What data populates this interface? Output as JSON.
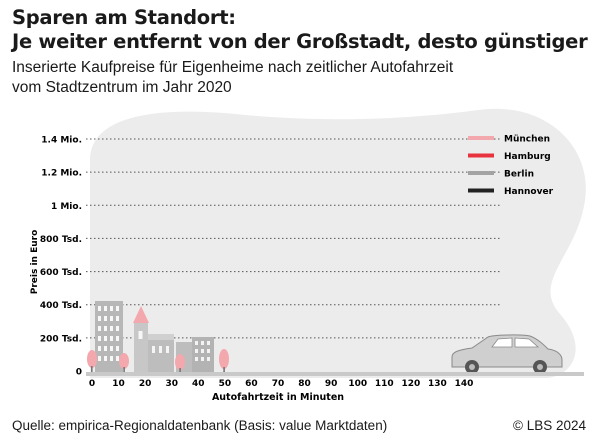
{
  "header": {
    "title_line1": "Sparen am Standort:",
    "title_line2": "Je weiter entfernt von der Großstadt, desto günstiger",
    "subtitle_line1": "Inserierte Kaufpreise für Eigenheime nach zeitlicher Autofahrzeit",
    "subtitle_line2": "vom Stadtzentrum im Jahr 2020"
  },
  "footer": {
    "source": "Quelle: empirica-Regionaldatenbank (Basis: value Marktdaten)",
    "copyright": "© LBS 2024"
  },
  "colors": {
    "background_blob": "#ececec",
    "grid": "#555555",
    "muenchen": "#f3a8ad",
    "hamburg": "#e8323e",
    "berlin": "#a3a3a3",
    "hannover": "#222222"
  },
  "chart_data": {
    "type": "line",
    "title": "",
    "xlabel": "Autofahrtzeit in Minuten",
    "ylabel": "Preis in Euro",
    "x_ticks": [
      0,
      10,
      20,
      30,
      40,
      50,
      60,
      70,
      80,
      90,
      100,
      110,
      120,
      130,
      140
    ],
    "y_ticks": [
      0,
      200000,
      400000,
      600000,
      800000,
      1000000,
      1200000,
      1400000
    ],
    "y_tick_labels": [
      "0",
      "200 Tsd.",
      "400 Tsd.",
      "600 Tsd.",
      "800 Tsd.",
      "1 Mio.",
      "1.2 Mio.",
      "1.4 Mio."
    ],
    "xlim": [
      0,
      140
    ],
    "ylim": [
      0,
      1400000
    ],
    "grid": true,
    "legend_position": "top-right",
    "series": [
      {
        "name": "München",
        "color": "#f3a8ad",
        "values": []
      },
      {
        "name": "Hamburg",
        "color": "#e8323e",
        "values": []
      },
      {
        "name": "Berlin",
        "color": "#a3a3a3",
        "values": []
      },
      {
        "name": "Hannover",
        "color": "#222222",
        "values": []
      }
    ]
  }
}
